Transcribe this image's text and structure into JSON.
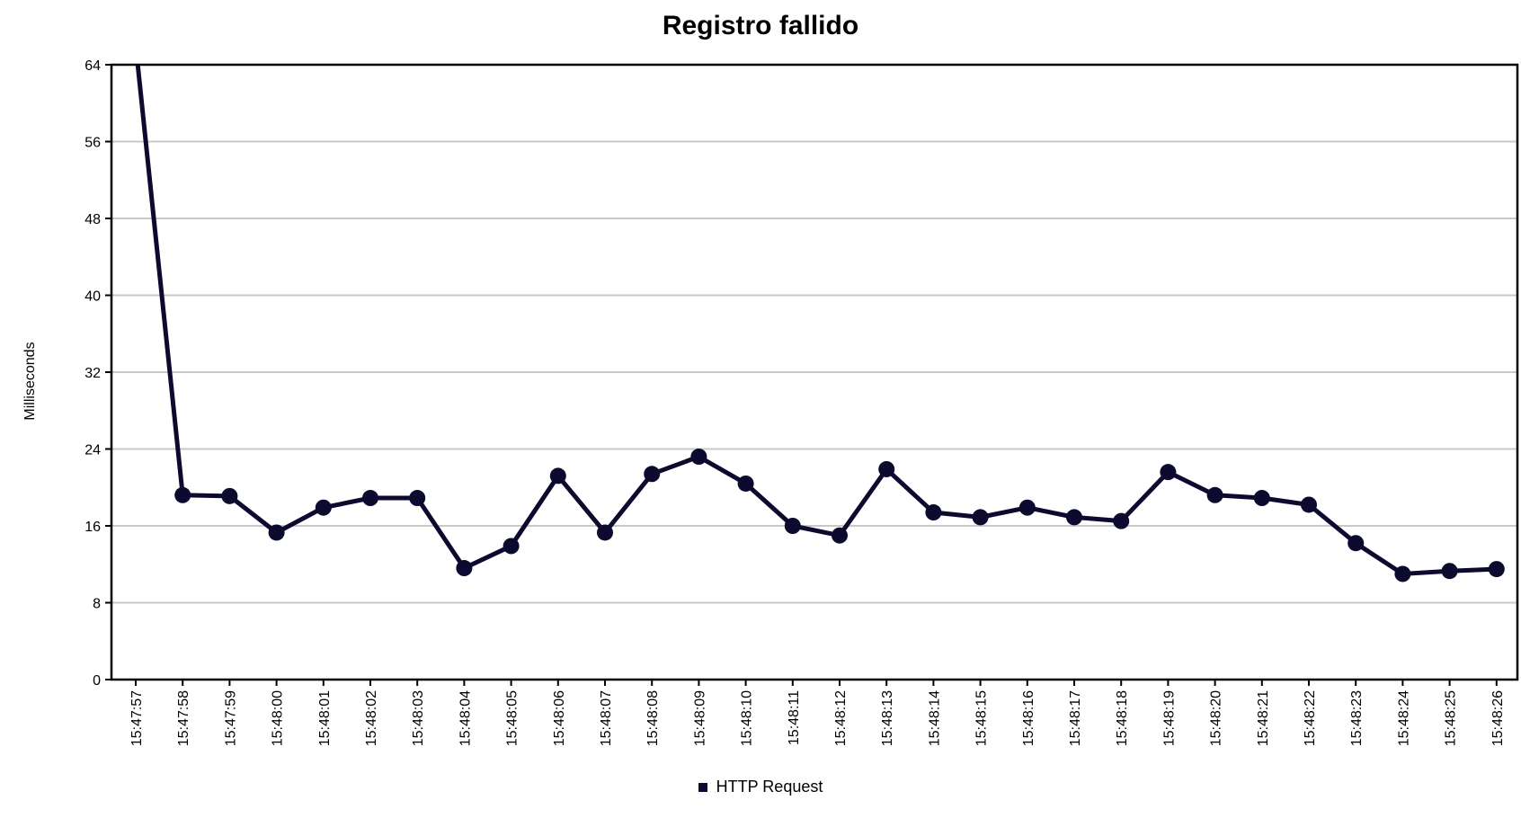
{
  "chart_data": {
    "type": "line",
    "title": "Registro fallido",
    "xlabel": "",
    "ylabel": "Milliseconds",
    "ylim": [
      0,
      64
    ],
    "yticks": [
      "0",
      "8",
      "16",
      "24",
      "32",
      "40",
      "48",
      "56",
      "64"
    ],
    "grid": true,
    "legend_position": "bottom",
    "categories": [
      "15:47:57",
      "15:47:58",
      "15:47:59",
      "15:48:00",
      "15:48:01",
      "15:48:02",
      "15:48:03",
      "15:48:04",
      "15:48:05",
      "15:48:06",
      "15:48:07",
      "15:48:08",
      "15:48:09",
      "15:48:10",
      "15:48:11",
      "15:48:12",
      "15:48:13",
      "15:48:14",
      "15:48:15",
      "15:48:16",
      "15:48:17",
      "15:48:18",
      "15:48:19",
      "15:48:20",
      "15:48:21",
      "15:48:22",
      "15:48:23",
      "15:48:24",
      "15:48:25",
      "15:48:26"
    ],
    "series": [
      {
        "name": "HTTP Request",
        "color": "#0c0a2e",
        "values": [
          66,
          19.2,
          19.1,
          15.3,
          17.9,
          18.9,
          18.9,
          11.6,
          13.9,
          21.2,
          15.3,
          21.4,
          23.2,
          20.4,
          16.0,
          15.0,
          21.9,
          17.4,
          16.9,
          17.9,
          16.9,
          16.5,
          21.6,
          19.2,
          18.9,
          18.2,
          14.2,
          11.0,
          11.3,
          11.5
        ]
      }
    ]
  }
}
